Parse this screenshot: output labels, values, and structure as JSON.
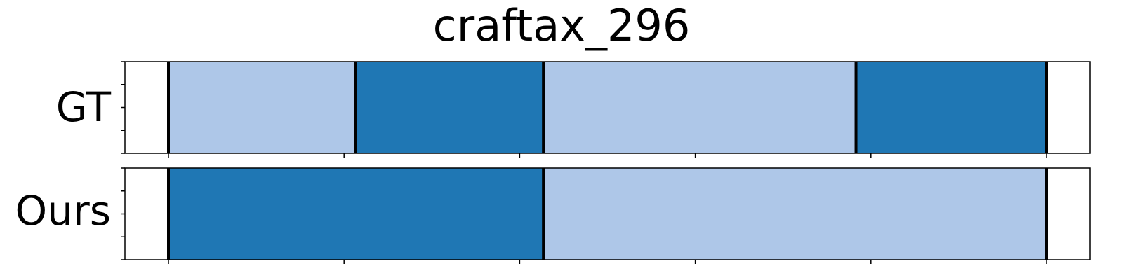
{
  "chart_data": {
    "type": "bar",
    "title": "craftax_296",
    "xlim": [
      0,
      1
    ],
    "rows": [
      {
        "label": "GT",
        "segments": [
          {
            "start": 0.0,
            "end": 0.213,
            "shade": "light"
          },
          {
            "start": 0.213,
            "end": 0.427,
            "shade": "dark"
          },
          {
            "start": 0.427,
            "end": 0.783,
            "shade": "light"
          },
          {
            "start": 0.783,
            "end": 1.0,
            "shade": "dark"
          }
        ],
        "boundaries": [
          0.0,
          0.213,
          0.427,
          0.783,
          1.0
        ]
      },
      {
        "label": "Ours",
        "segments": [
          {
            "start": 0.0,
            "end": 0.427,
            "shade": "dark"
          },
          {
            "start": 0.427,
            "end": 1.0,
            "shade": "light"
          }
        ],
        "boundaries": [
          0.0,
          0.427,
          1.0
        ]
      }
    ],
    "xticks": [
      0.0,
      0.2,
      0.4,
      0.6,
      0.8,
      1.0
    ],
    "yticks_per_row": 5,
    "grid": false
  },
  "colors": {
    "dark": "#1f77b4",
    "light": "#aec7e8",
    "boundary": "#000000"
  }
}
